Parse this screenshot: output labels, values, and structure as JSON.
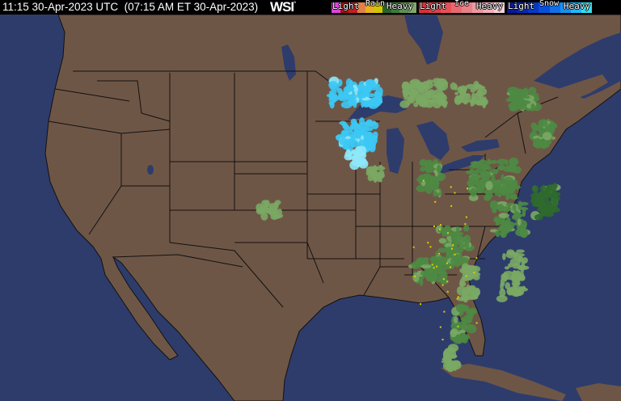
{
  "header": {
    "timestamp": "11:15 30-Apr-2023 UTC  (07:15 AM ET 30-Apr-2023)",
    "logo": "WSI",
    "logo_mark": "°"
  },
  "legend": [
    {
      "title": "Rain",
      "light": "Light",
      "heavy": "Heavy",
      "colors": [
        "#7fa86a",
        "#5c9050",
        "#3e7a38",
        "#2a6428",
        "#d4c400",
        "#e8b020",
        "#e08048",
        "#c02020",
        "#a01010",
        "#e040e0"
      ]
    },
    {
      "title": "Ice",
      "light": "Light",
      "heavy": "Heavy",
      "colors": [
        "#f4d0d8",
        "#f0b0b8",
        "#ec98a0",
        "#e88088",
        "#e86870",
        "#e85058",
        "#e04048",
        "#d83038"
      ]
    },
    {
      "title": "Snow",
      "light": "Light",
      "heavy": "Heavy",
      "colors": [
        "#30e0f0",
        "#20b8f8",
        "#1890f0",
        "#1070e8",
        "#0850d8",
        "#0838c8",
        "#0828b0",
        "#081898"
      ]
    }
  ],
  "map": {
    "land_color": "#6e5646",
    "water_color": "#2e3c6c",
    "border_color": "#111111",
    "precip_colors": {
      "rain_light": "#7aa864",
      "rain_mod": "#4e8a44",
      "rain_dark": "#2f6a2c",
      "snow": "#3cc8f4",
      "snow_light": "#8ee8fa",
      "yellow": "#e0d000",
      "mix": "#f0b0c0"
    }
  }
}
